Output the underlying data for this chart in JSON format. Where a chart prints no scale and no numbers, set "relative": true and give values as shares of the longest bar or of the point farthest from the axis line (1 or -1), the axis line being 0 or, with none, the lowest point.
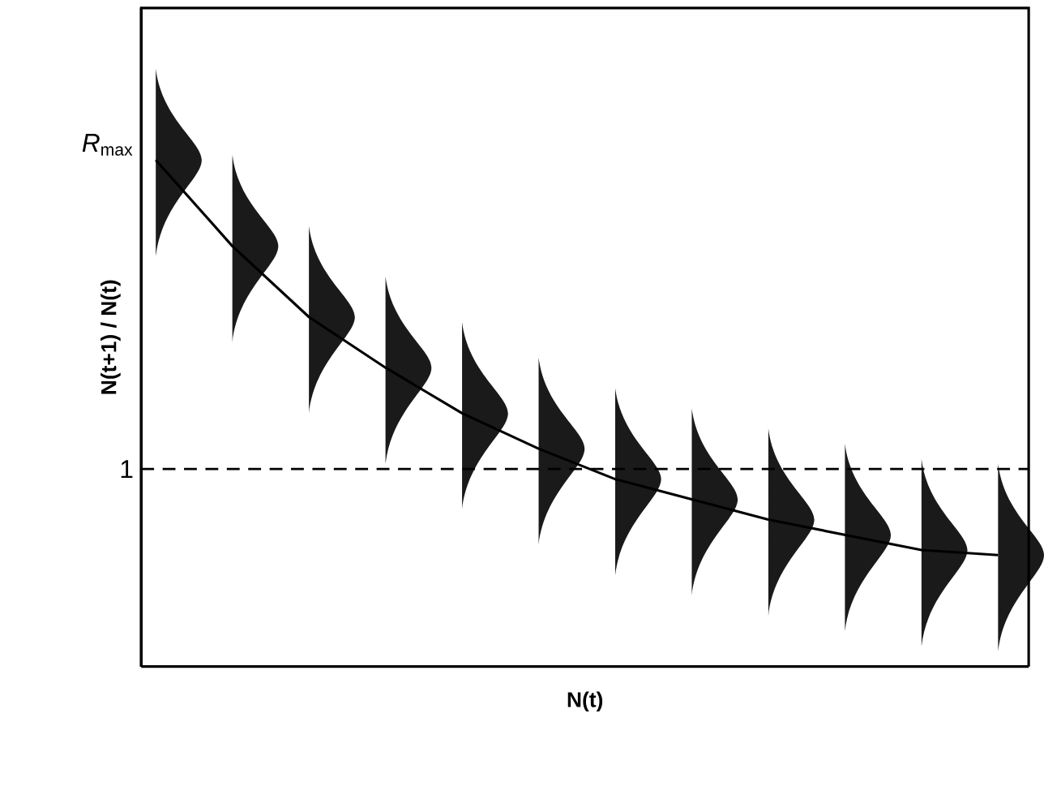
{
  "chart_data": {
    "type": "line",
    "xlabel": "N(t)",
    "ylabel": "N(t+1) / N(t)",
    "relative": true,
    "marker": "none",
    "color": "#000000",
    "categories": [
      null,
      null,
      null,
      null,
      null,
      null,
      null,
      null,
      null,
      null,
      null,
      null
    ],
    "values": [
      1.0,
      0.83,
      0.69,
      0.59,
      0.5,
      0.43,
      0.37,
      0.33,
      0.29,
      0.26,
      0.23,
      0.22
    ],
    "ref_lines": [
      {
        "axis": "y",
        "value": 0.39,
        "line_style": "dashed"
      }
    ],
    "annotations": [
      "*R*$_{max}$",
      "1"
    ]
  }
}
